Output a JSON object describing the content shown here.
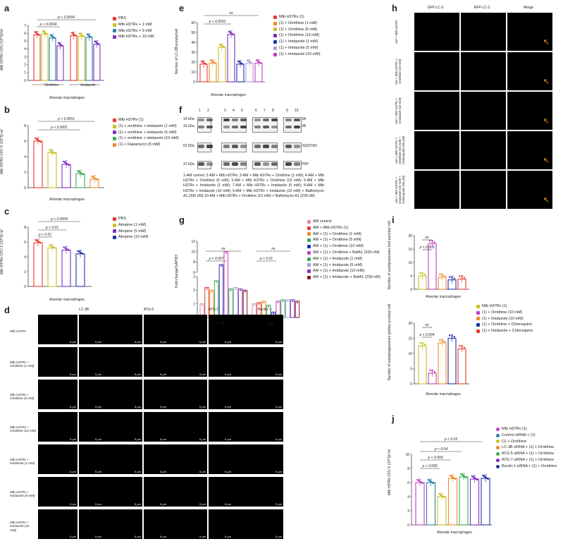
{
  "panels": {
    "a": {
      "label": "a",
      "ylabel": "Mtb H37Rv CFU (10^5)/ml",
      "xlabel": "Alveolar macrophages",
      "group1": "Ornithine",
      "group2": "Imidazole",
      "sig": [
        "p < 0.0004",
        "p < 0.0004"
      ],
      "legend": [
        "PBS",
        "Mtb H37Rv + 1 mM",
        "Mtb H37Rv + 5 mM",
        "Mtb H37Rv + 10 mM"
      ]
    },
    "b": {
      "label": "b",
      "ylabel": "Mtb H37Rv CFU X (10^5) ml",
      "xlabel": "Alveolar macrophages",
      "sig": [
        "p < 0.0001",
        "p < 0.0001"
      ],
      "legend": [
        "Mtb H37Rv (1)",
        "(1) + ornithine + imidazole (1 mM)",
        "(1) + ornithine + imidazole (5 mM)",
        "(1) + ornithine + imidazole (10 mM)",
        "(1) + Rapamycin (5 mM)"
      ]
    },
    "c": {
      "label": "c",
      "ylabel": "Mtb H37Rv CFU X (10^5) ml",
      "xlabel": "Alveolar macrophages",
      "sig": [
        "p < 0.0004",
        "p < 0.01",
        "p < 0.01"
      ],
      "legend": [
        "PBS",
        "Atropine (1 mM)",
        "Atropine (5 mM)",
        "Atropine (10 mM)"
      ]
    },
    "d": {
      "label": "d",
      "cols": [
        "LC-3B",
        "ATG-5",
        "ATG-7",
        "Beclin -1"
      ],
      "rows": [
        "Mtb H37Rv",
        "Mtb H37Rv + Ornithine (1 mM)",
        "Mtb H37Rv + Ornithine (5 mM)",
        "Mtb H37Rv + Ornithine (10 mM)",
        "Mtb H37Rv + Imidazole (1 mM)",
        "Mtb H37Rv + Imidazole (5 mM)",
        "Mtb H37Rv + Imidazole (10 mM)"
      ],
      "scalebar": "5 μm",
      "dapi": "/DAPI"
    },
    "e": {
      "label": "e",
      "ylabel": "Number of LC-3B puncta/cell",
      "xlabel": "Alveolar macrophages",
      "sig": [
        "ns",
        "p < 0.0001"
      ],
      "legend": [
        "Mtb H37Rv (1)",
        "(1) + Ornithine (1 mM)",
        "(1) + Ornithine (5 mM)",
        "(1) + Ornithine (10 mM)",
        "(1) + Imidazole (1 mM)",
        "(1) + Imidazole (5 mM)",
        "(1) + Imidazole (10 mM)"
      ]
    },
    "f": {
      "label": "f",
      "lanes": [
        "1",
        "2",
        "3",
        "4",
        "5",
        "6",
        "7",
        "8",
        "9",
        "10"
      ],
      "kda": [
        "14 kDa",
        "16 kDa",
        "62 kDa",
        "37 kDa"
      ],
      "proteins": [
        "LC-3A",
        "LC-3B",
        "p62/SQSTM1",
        "GAPDH"
      ],
      "caption": "1-AM control; 2-AM + Mtb H37Rv; 3-AM + Mtb H37Rv + Ornithine (1 mM); 4-AM + Mtb H37Rv + Ornithine (5 mM); 5-AM + Mtb H37Rv + Ornithine (10 mM); 6-AM + Mtb H37Rv + Imidazole (1 mM); 7-AM + Mtb H37Rv + Imidazole (5 mM); 8-AM + Mtb H37Rv + Imidazole (10 mM); 9-AM + Mtb H37Rv + Imidazole (10 mM) + Bafilomycin A1 (200 nM) 10-AM + Mtb H37Rv + Ornithine (10 mM) + Bafilomycin A1 (200 nM)"
    },
    "g": {
      "label": "g",
      "ylabel": "Fold change/GAPDH",
      "groups": [
        "LC-3B",
        "p62"
      ],
      "sig": [
        "ns",
        "p < 0.007",
        "ns",
        "p < 0.01"
      ],
      "legend": [
        "AM control",
        "AM + Mtb H37Rv (1)",
        "AM + (1) + Ornithine (1 mM)",
        "AM + (1) + Ornithine (5 mM)",
        "AM + (1) + Ornithine (10 mM)",
        "AM + (1) + Ornithine + BafA1 (200 nM)",
        "AM + (1) + Imidazole (1 mM)",
        "AM + (1) + Imidazole (5 mM)",
        "AM + (1) + Imidazole (10 mM)",
        "AM + (1) + Imidazole + BafA1 (200 nM)"
      ]
    },
    "h": {
      "label": "h",
      "cols": [
        "GFP-LC-3",
        "RFP-LC-3",
        "Merge"
      ],
      "rows": [
        "AM + Mtb H37Rv",
        "AM + Mtb H37Rv + Ornithine (10 mM)",
        "AM + Mtb H37Rv + Imidazole (10 mM)",
        "AM + Mtb H37Rv + Ornithine (10 mM) + Chloroquine (50 μM)",
        "AM + Mtb H37Rv + Imidazole (10 mM) + Chloroquine (50 μM)"
      ]
    },
    "i": {
      "label": "i",
      "ylabel_top": "Number of autolysosomes (red puncta)/ cell",
      "ylabel_bottom": "Number of autophagosomes (yellow puncta)/ cell",
      "xlabel": "Alveolar macrophages",
      "sig_top": [
        "ns",
        "p < 0.003"
      ],
      "sig_bottom": [
        "ns",
        "p < 0.004"
      ],
      "legend": [
        "Mtb H37Rv (1)",
        "(1) + Ornithine (10 mM)",
        "(1) + Imidazole (10 mM)",
        "(1) + Ornithine + Chloroquine",
        "(1) + Imidazole + Chloroquine"
      ]
    },
    "j": {
      "label": "j",
      "ylabel": "Mtb H37Rv CFU X (10^5)/ ml",
      "xlabel": "Alveolar macrophages",
      "sig": [
        "p < 0.03",
        "p < 0.04",
        "p < 0.006",
        "p < 0.009"
      ],
      "legend": [
        "Mtb H37Rv (1)",
        "Control siRNA + (1)",
        "(1) + Ornithine",
        "LC-3B siRNA + (1) + Ornithine",
        "ATG-5 siRNA + (1) + Ornithine",
        "ATG-7 siRNA + (1) + Ornithine",
        "Beclin-1 siRNA + (1) + Ornithine"
      ]
    }
  },
  "colors": {
    "red": "#e8382e",
    "yellow": "#c8c020",
    "teal": "#2a7fa8",
    "purple": "#7b2fbe",
    "blue": "#2233aa",
    "orange": "#f08a24",
    "green": "#3aaa55",
    "magenta": "#c040c0",
    "darkred": "#8b1a1a",
    "lavender": "#a8a0d8",
    "pink": "#e08ab0"
  },
  "chart_data": [
    {
      "type": "bar",
      "panel": "a",
      "ylim": [
        0,
        7
      ],
      "yticks": [
        0,
        1,
        2,
        3,
        4,
        5,
        6,
        7
      ],
      "categories": [
        "Ornithine",
        "Imidazole"
      ],
      "series": [
        {
          "name": "PBS",
          "values": [
            5.8,
            5.7
          ]
        },
        {
          "name": "Mtb H37Rv + 1 mM",
          "values": [
            5.9,
            5.6
          ]
        },
        {
          "name": "Mtb H37Rv + 5 mM",
          "values": [
            5.4,
            5.5
          ]
        },
        {
          "name": "Mtb H37Rv + 10 mM",
          "values": [
            4.4,
            4.6
          ]
        }
      ]
    },
    {
      "type": "bar",
      "panel": "b",
      "ylim": [
        0,
        8
      ],
      "yticks": [
        0,
        2,
        4,
        6,
        8
      ],
      "series": [
        {
          "name": "Mtb H37Rv (1)",
          "values": [
            6.0
          ]
        },
        {
          "name": "(1) + ornithine + imidazole (1 mM)",
          "values": [
            4.5
          ]
        },
        {
          "name": "(1) + ornithine + imidazole (5 mM)",
          "values": [
            3.0
          ]
        },
        {
          "name": "(1) + ornithine + imidazole (10 mM)",
          "values": [
            1.8
          ]
        },
        {
          "name": "(1) + Rapamycin (5 mM)",
          "values": [
            1.1
          ]
        }
      ]
    },
    {
      "type": "bar",
      "panel": "c",
      "ylim": [
        0,
        8
      ],
      "yticks": [
        0,
        2,
        4,
        6,
        8
      ],
      "series": [
        {
          "name": "PBS",
          "values": [
            5.9
          ]
        },
        {
          "name": "Atropine (1 mM)",
          "values": [
            5.2
          ]
        },
        {
          "name": "Atropine (5 mM)",
          "values": [
            4.9
          ]
        },
        {
          "name": "Atropine (10 mM)",
          "values": [
            4.4
          ]
        }
      ]
    },
    {
      "type": "bar",
      "panel": "e",
      "ylim": [
        0,
        60
      ],
      "yticks": [
        0,
        10,
        20,
        30,
        40,
        50,
        60
      ],
      "series": [
        {
          "name": "Mtb H37Rv (1)",
          "values": [
            18
          ]
        },
        {
          "name": "(1) + Ornithine (1 mM)",
          "values": [
            19
          ]
        },
        {
          "name": "(1) + Ornithine (5 mM)",
          "values": [
            35
          ]
        },
        {
          "name": "(1) + Ornithine (10 mM)",
          "values": [
            48
          ]
        },
        {
          "name": "(1) + Imidazole (1 mM)",
          "values": [
            18
          ]
        },
        {
          "name": "(1) + Imidazole (5 mM)",
          "values": [
            19
          ]
        },
        {
          "name": "(1) + Imidazole (10 mM)",
          "values": [
            19
          ]
        }
      ]
    },
    {
      "type": "bar",
      "panel": "g",
      "yticks_low": [
        0,
        1,
        2,
        3
      ],
      "yticks_high": [
        6,
        8,
        10,
        12
      ],
      "categories": [
        "LC-3B",
        "p62"
      ],
      "series": [
        {
          "name": "AM control",
          "values": [
            1.0,
            1.0
          ]
        },
        {
          "name": "AM + Mtb H37Rv (1)",
          "values": [
            2.2,
            1.1
          ]
        },
        {
          "name": "AM + (1) + Ornithine (1 mM)",
          "values": [
            2.0,
            1.2
          ]
        },
        {
          "name": "AM + (1) + Ornithine (5 mM)",
          "values": [
            2.7,
            0.9
          ]
        },
        {
          "name": "AM + (1) + Ornithine (10 mM)",
          "values": [
            7.5,
            0.4
          ]
        },
        {
          "name": "AM + (1) + Ornithine + BafA1 (200 nM)",
          "values": [
            10.0,
            1.2
          ]
        },
        {
          "name": "AM + (1) + Imidazole (1 mM)",
          "values": [
            2.1,
            1.3
          ]
        },
        {
          "name": "AM + (1) + Imidazole (5 mM)",
          "values": [
            2.2,
            1.3
          ]
        },
        {
          "name": "AM + (1) + Imidazole (10 mM)",
          "values": [
            2.1,
            1.3
          ]
        },
        {
          "name": "AM + (1) + Imidazole + BafA1 (200 nM)",
          "values": [
            2.0,
            1.2
          ]
        }
      ]
    },
    {
      "type": "bar",
      "panel": "i-top",
      "ylim": [
        0,
        20
      ],
      "yticks": [
        0,
        5,
        10,
        15,
        20
      ],
      "series": [
        {
          "name": "Mtb H37Rv (1)",
          "values": [
            5
          ]
        },
        {
          "name": "(1) + Ornithine (10 mM)",
          "values": [
            17
          ]
        },
        {
          "name": "(1) + Imidazole (10 mM)",
          "values": [
            4.5
          ]
        },
        {
          "name": "(1) + Ornithine + Chloroquine",
          "values": [
            3.5
          ]
        },
        {
          "name": "(1) + Imidazole + Chloroquine",
          "values": [
            3.8
          ]
        }
      ]
    },
    {
      "type": "bar",
      "panel": "i-bottom",
      "ylim": [
        0,
        20
      ],
      "yticks": [
        0,
        5,
        10,
        15,
        20
      ],
      "series": [
        {
          "name": "Mtb H37Rv (1)",
          "values": [
            12.5
          ]
        },
        {
          "name": "(1) + Ornithine (10 mM)",
          "values": [
            3.5
          ]
        },
        {
          "name": "(1) + Imidazole (10 mM)",
          "values": [
            13.5
          ]
        },
        {
          "name": "(1) + Ornithine + Chloroquine",
          "values": [
            15
          ]
        },
        {
          "name": "(1) + Imidazole + Chloroquine",
          "values": [
            11.5
          ]
        }
      ]
    },
    {
      "type": "bar",
      "panel": "j",
      "ylim": [
        0,
        10
      ],
      "yticks": [
        0,
        2,
        4,
        6,
        8,
        10
      ],
      "series": [
        {
          "name": "Mtb H37Rv (1)",
          "values": [
            6.0
          ]
        },
        {
          "name": "Control siRNA + (1)",
          "values": [
            6.0
          ]
        },
        {
          "name": "(1) + Ornithine",
          "values": [
            4.0
          ]
        },
        {
          "name": "LC-3B siRNA + (1) + Ornithine",
          "values": [
            6.6
          ]
        },
        {
          "name": "ATG-5 siRNA + (1) + Ornithine",
          "values": [
            6.8
          ]
        },
        {
          "name": "ATG-7 siRNA + (1) + Ornithine",
          "values": [
            6.5
          ]
        },
        {
          "name": "Beclin-1 siRNA + (1) + Ornithine",
          "values": [
            6.6
          ]
        }
      ]
    }
  ]
}
